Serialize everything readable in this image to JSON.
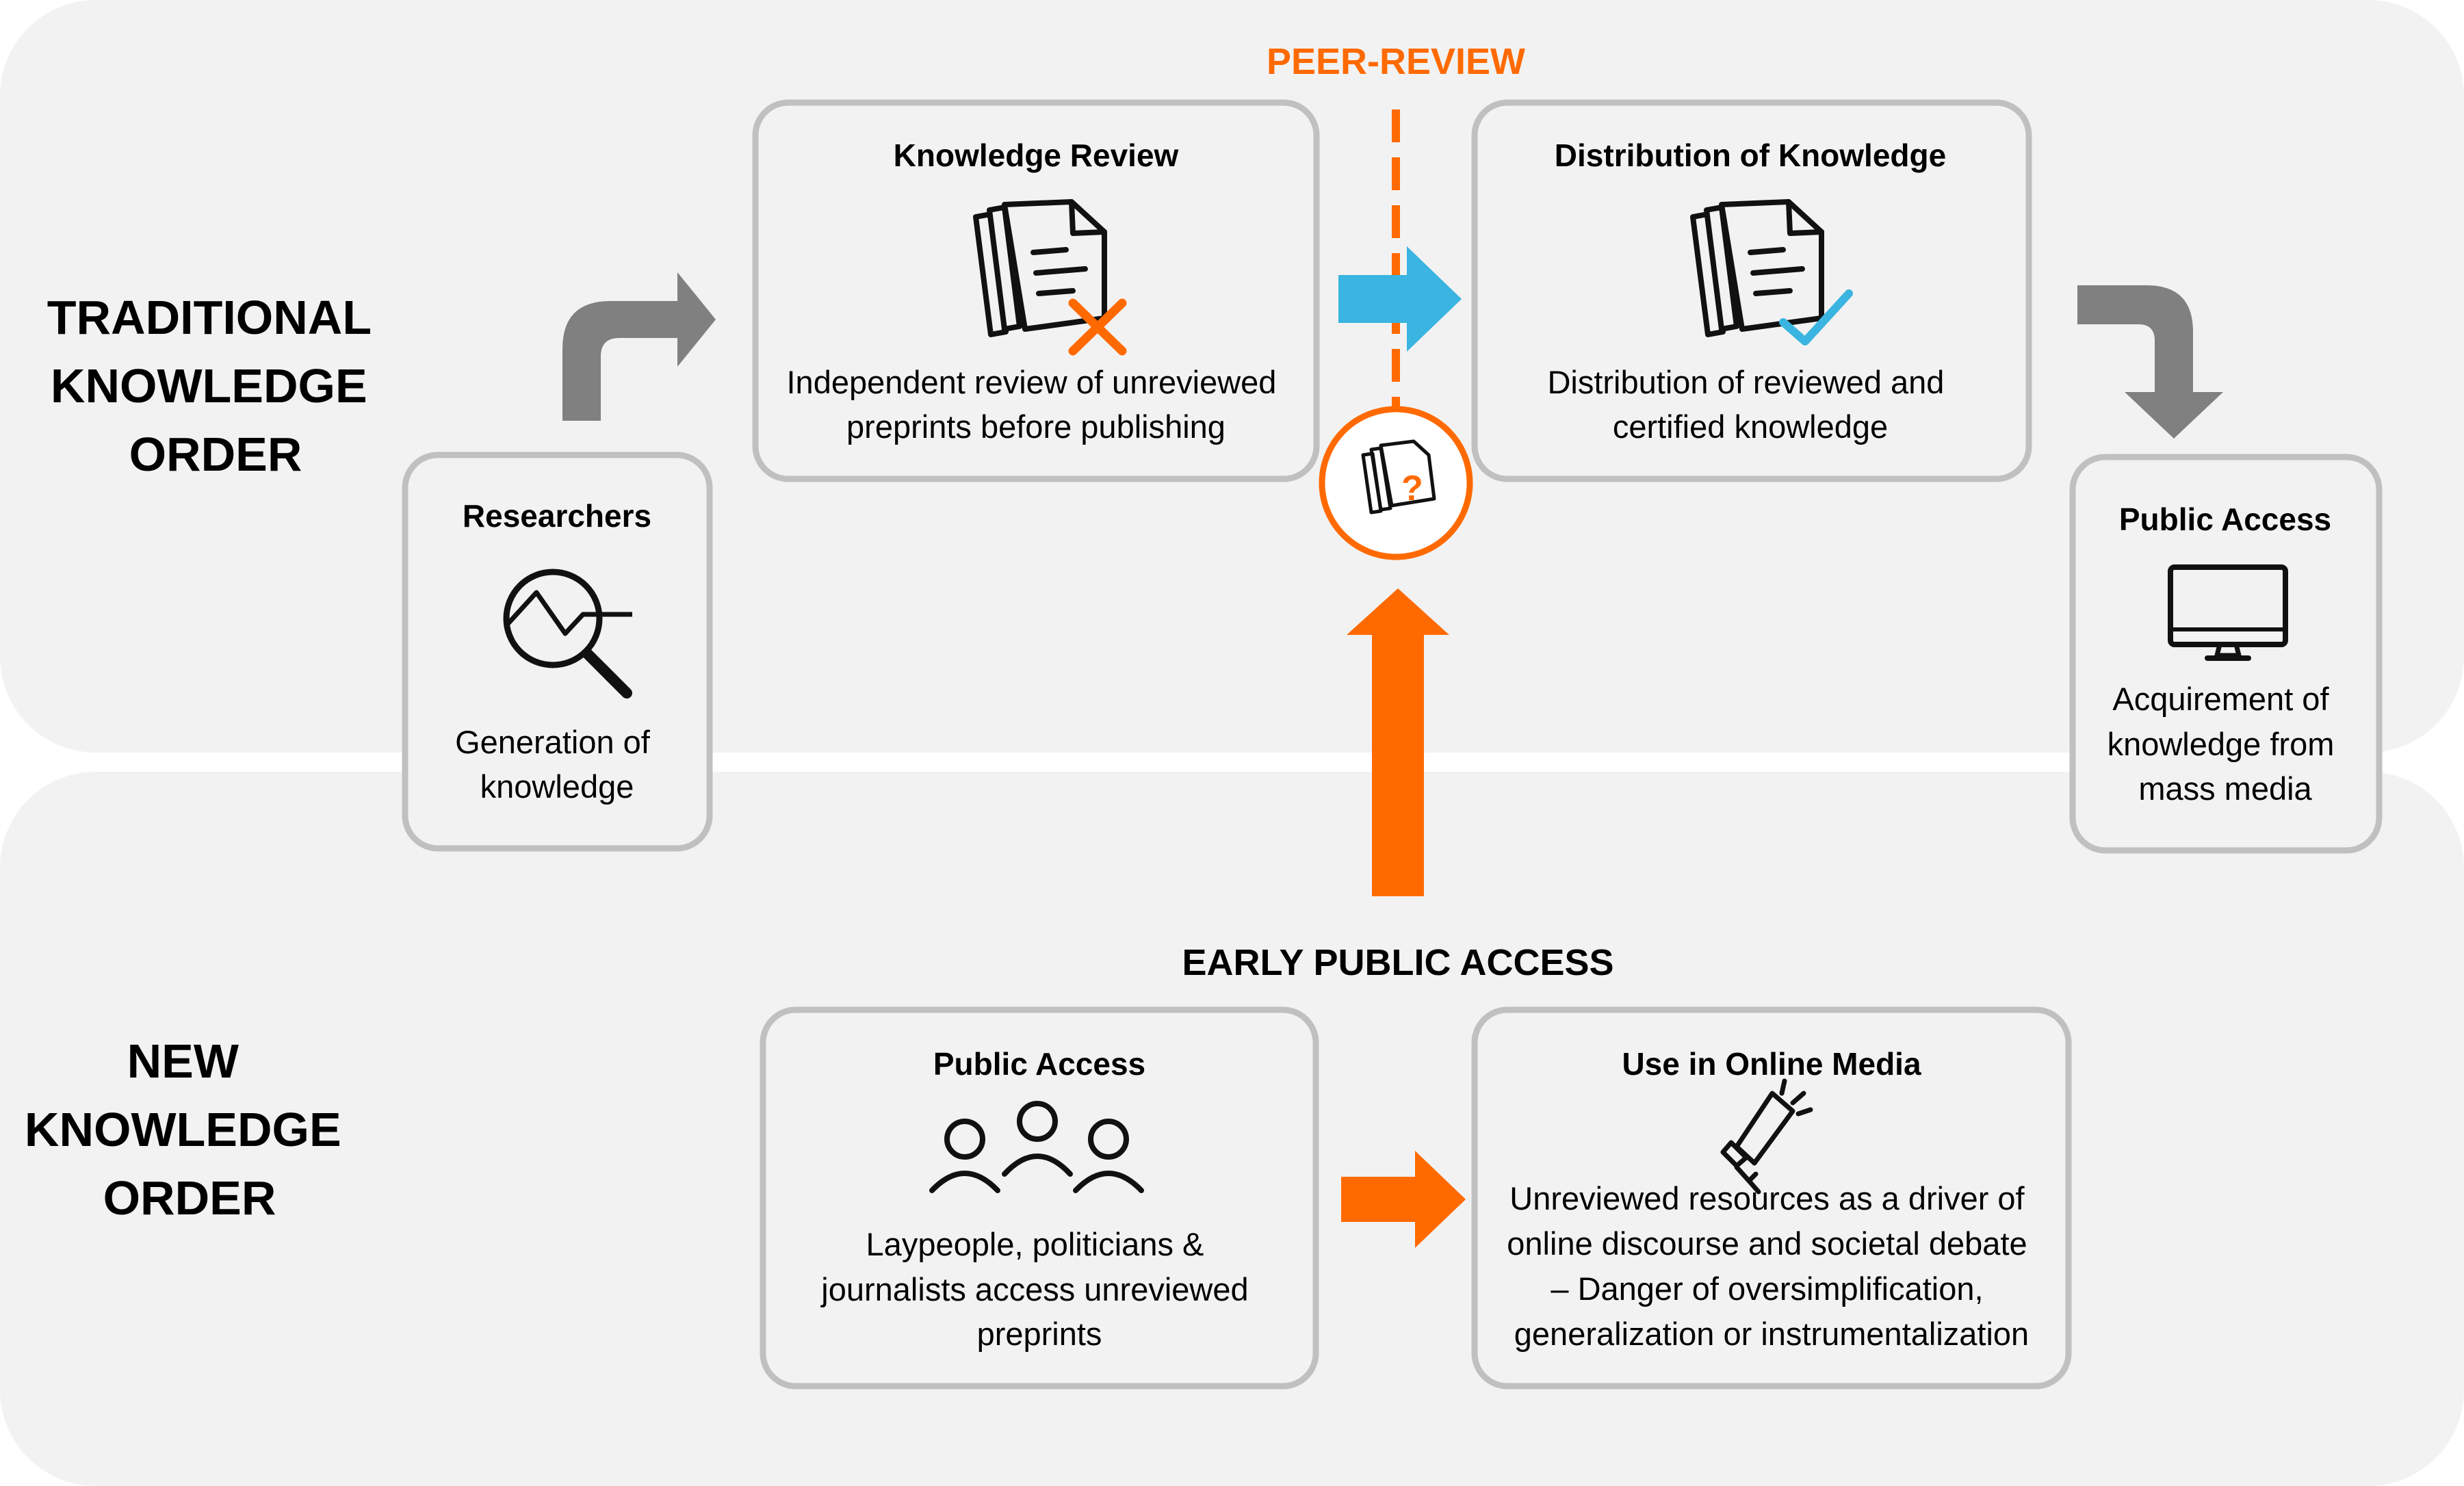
{
  "colors": {
    "orange": "#ff6a00",
    "blue": "#3ab4e0",
    "gray_arrow": "#808080",
    "card_border": "#c0c0c0",
    "panel": "#f2f2f2"
  },
  "labels": {
    "traditional_order": [
      "TRADITIONAL",
      "KNOWLEDGE",
      "ORDER"
    ],
    "new_order": [
      "NEW",
      "KNOWLEDGE",
      "ORDER"
    ],
    "peer_review": "PEER-REVIEW",
    "early_public_access": "EARLY PUBLIC ACCESS"
  },
  "cards": {
    "researchers": {
      "title": "Researchers",
      "icon": "magnifier-chart-icon",
      "lines": [
        "Generation of",
        "knowledge"
      ]
    },
    "knowledge_review": {
      "title": "Knowledge Review",
      "icon": "documents-cross-icon",
      "lines": [
        "Independent review of unreviewed",
        "preprints before publishing"
      ]
    },
    "distribution": {
      "title": "Distribution of Knowledge",
      "icon": "documents-check-icon",
      "lines": [
        "Distribution of reviewed and",
        "certified knowledge"
      ]
    },
    "public_access_top": {
      "title": "Public Access",
      "icon": "monitor-icon",
      "lines": [
        "Acquirement of",
        "knowledge from",
        "mass media"
      ]
    },
    "public_access_bottom": {
      "title": "Public Access",
      "icon": "people-group-icon",
      "lines": [
        "Laypeople, politicians &",
        "journalists access unreviewed",
        "preprints"
      ]
    },
    "online_media": {
      "title": "Use in Online Media",
      "icon": "megaphone-icon",
      "lines": [
        "Unreviewed resources as a driver of",
        "online discourse and societal debate",
        "– Danger of oversimplification,",
        "generalization or instrumentalization"
      ]
    }
  }
}
